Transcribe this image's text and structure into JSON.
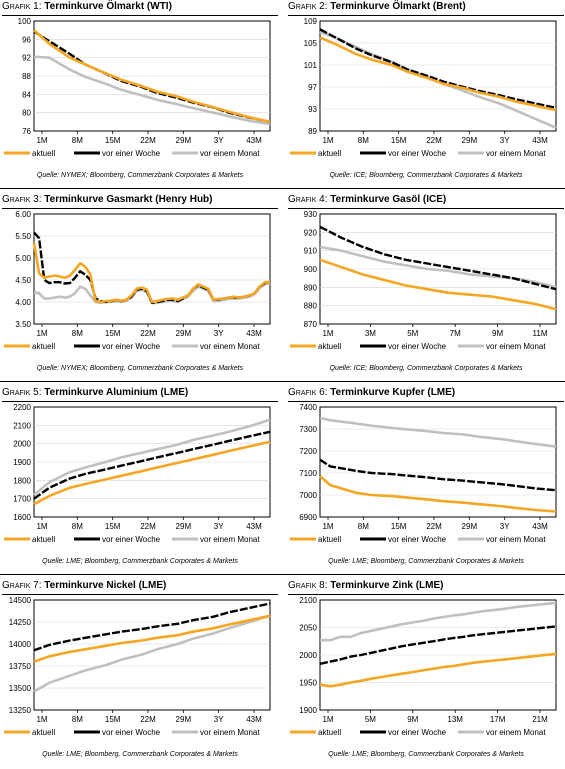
{
  "legend_labels": [
    "aktuell",
    "vor einer Woche",
    "vor einem Monat"
  ],
  "colors": {
    "aktuell": "#f5a623",
    "woche": "#000000",
    "monat": "#c0c0c0"
  },
  "charts": [
    {
      "num": "Grafik 1: ",
      "name": "Terminkurve Ölmarkt (WTI)",
      "source": "Quelle: NYMEX; Bloomberg, Commerzbank Corporates & Markets",
      "y_ticks": [
        "76",
        "80",
        "84",
        "88",
        "92",
        "96",
        "100"
      ],
      "x_ticks": [
        "1M",
        "8M",
        "15M",
        "22M",
        "29M",
        "3Y",
        "43M"
      ]
    },
    {
      "num": "Grafik 2: ",
      "name": "Terminkurve Ölmarkt (Brent)",
      "source": "Quelle: ICE; Bloomberg, Commerzbank Corporates & Markets",
      "y_ticks": [
        "89",
        "93",
        "97",
        "101",
        "105",
        "109"
      ],
      "x_ticks": [
        "1M",
        "8M",
        "15M",
        "22M",
        "29M",
        "3Y",
        "43M"
      ]
    },
    {
      "num": "Grafik 3: ",
      "name": "Terminkurve Gasmarkt (Henry Hub)",
      "source": "Quelle: NYMEX; Bloomberg, Commerzbank Corporates & Markets",
      "y_ticks": [
        "3.50",
        "4.00",
        "4.50",
        "5.00",
        "5.50",
        "6.00"
      ],
      "x_ticks": [
        "1M",
        "8M",
        "15M",
        "22M",
        "29M",
        "3Y",
        "43M"
      ]
    },
    {
      "num": "Grafik 4: ",
      "name": "Terminkurve Gasöl (ICE)",
      "source": "Quelle: ICE; Bloomberg, Commerzbank Corporates & Markets",
      "y_ticks": [
        "870",
        "880",
        "890",
        "900",
        "910",
        "920",
        "930"
      ],
      "x_ticks": [
        "1M",
        "3M",
        "5M",
        "7M",
        "9M",
        "11M"
      ]
    },
    {
      "num": "Grafik 5: ",
      "name": "Terminkurve Aluminium (LME)",
      "source": "Quelle: LME; Bloomberg, Commerzbank Corporates & Markets",
      "y_ticks": [
        "1600",
        "1700",
        "1800",
        "1900",
        "2000",
        "2100",
        "2200"
      ],
      "x_ticks": [
        "1M",
        "8M",
        "15M",
        "22M",
        "29M",
        "3Y",
        "43M"
      ]
    },
    {
      "num": "Grafik 6: ",
      "name": "Terminkurve Kupfer (LME)",
      "source": "Quelle: LME; Bloomberg, Commerzbank Corporates & Markets",
      "y_ticks": [
        "6900",
        "7000",
        "7100",
        "7200",
        "7300",
        "7400"
      ],
      "x_ticks": [
        "1M",
        "8M",
        "15M",
        "22M",
        "29M",
        "3Y",
        "43M"
      ]
    },
    {
      "num": "Grafik 7: ",
      "name": "Terminkurve Nickel (LME)",
      "source": "Quelle: LME; Bloomberg, Commerzbank Corporates & Markets",
      "y_ticks": [
        "13250",
        "13500",
        "13750",
        "14000",
        "14250",
        "14500"
      ],
      "x_ticks": [
        "1M",
        "8M",
        "15M",
        "22M",
        "29M",
        "3Y",
        "43M"
      ]
    },
    {
      "num": "Grafik 8: ",
      "name": "Terminkurve Zink (LME)",
      "source": "Quelle: LME; Bloomberg, Commerzbank Corporates & Markets",
      "y_ticks": [
        "1900",
        "1950",
        "2000",
        "2050",
        "2100"
      ],
      "x_ticks": [
        "1M",
        "5M",
        "9M",
        "13M",
        "17M",
        "21M"
      ]
    }
  ],
  "chart_data": [
    {
      "type": "line",
      "ylim": [
        76,
        100
      ],
      "x": [
        1,
        4,
        8,
        11,
        15,
        18,
        22,
        25,
        29,
        32,
        36,
        39,
        43,
        47
      ],
      "series": [
        {
          "name": "aktuell",
          "values": [
            98,
            95,
            92,
            90.5,
            88.6,
            87.2,
            85.8,
            84.6,
            83.5,
            82.4,
            81.2,
            80.2,
            79,
            78
          ]
        },
        {
          "name": "vor einer Woche",
          "values": [
            97.7,
            95.6,
            92.8,
            90.5,
            88.5,
            86.9,
            85.6,
            84.3,
            83.2,
            82.2,
            81.1,
            80,
            78.9,
            78
          ]
        },
        {
          "name": "vor einem Monat",
          "values": [
            92.2,
            92,
            89.4,
            87.8,
            86.3,
            85,
            83.8,
            82.8,
            81.8,
            81,
            80,
            79.2,
            78.2,
            77.5
          ]
        }
      ]
    },
    {
      "type": "line",
      "ylim": [
        89,
        109
      ],
      "x": [
        1,
        4,
        8,
        11,
        15,
        18,
        22,
        25,
        29,
        32,
        36,
        39,
        43,
        47
      ],
      "series": [
        {
          "name": "aktuell",
          "values": [
            106,
            104.8,
            103,
            102,
            101,
            99.8,
            98.6,
            97.6,
            96.8,
            96,
            95.2,
            94.4,
            93.6,
            92.8
          ]
        },
        {
          "name": "vor einer Woche",
          "values": [
            107.5,
            106,
            104,
            102.8,
            101.5,
            100.2,
            99,
            98,
            97,
            96.3,
            95.5,
            94.8,
            94,
            93.2
          ]
        },
        {
          "name": "vor einem Monat",
          "values": [
            107,
            106,
            104.3,
            103,
            101.6,
            100.2,
            98.8,
            97.6,
            96.3,
            95.2,
            94,
            92.8,
            91.2,
            89.6
          ]
        }
      ]
    },
    {
      "type": "line",
      "ylim": [
        3.5,
        6.0
      ],
      "x": [
        1,
        2,
        3,
        4,
        5,
        6,
        7,
        8,
        9,
        10,
        11,
        12,
        13,
        14,
        15,
        16,
        17,
        18,
        19,
        20,
        21,
        22,
        23,
        24,
        25,
        26,
        27,
        28,
        29,
        30,
        31,
        32,
        33,
        34,
        35,
        36,
        37,
        38,
        39,
        40,
        41,
        42,
        43,
        44,
        45,
        46,
        47
      ],
      "series": [
        {
          "name": "aktuell",
          "values": [
            5.35,
            4.65,
            4.55,
            4.58,
            4.6,
            4.58,
            4.55,
            4.6,
            4.73,
            4.88,
            4.8,
            4.62,
            4.02,
            4.0,
            4.02,
            4.03,
            4.05,
            4.03,
            4.05,
            4.15,
            4.3,
            4.33,
            4.28,
            4.0,
            4.02,
            4.05,
            4.07,
            4.08,
            4.05,
            4.1,
            4.15,
            4.3,
            4.4,
            4.35,
            4.3,
            4.05,
            4.07,
            4.08,
            4.1,
            4.12,
            4.1,
            4.12,
            4.15,
            4.2,
            4.35,
            4.45,
            4.45
          ]
        },
        {
          "name": "vor einer Woche",
          "values": [
            5.58,
            5.45,
            4.5,
            4.43,
            4.45,
            4.45,
            4.42,
            4.43,
            4.55,
            4.7,
            4.62,
            4.5,
            4.08,
            4.02,
            4.0,
            4.02,
            4.04,
            4.02,
            4.05,
            4.12,
            4.28,
            4.3,
            4.25,
            3.98,
            4.0,
            4.02,
            4.05,
            4.05,
            4.02,
            4.08,
            4.15,
            4.3,
            4.38,
            4.33,
            4.28,
            4.05,
            4.06,
            4.08,
            4.1,
            4.1,
            4.1,
            4.12,
            4.15,
            4.2,
            4.35,
            4.43,
            4.45
          ]
        },
        {
          "name": "vor einem Monat",
          "values": [
            4.22,
            4.2,
            4.08,
            4.08,
            4.1,
            4.12,
            4.1,
            4.12,
            4.2,
            4.35,
            4.3,
            4.15,
            4.0,
            3.98,
            4.0,
            4.0,
            4.02,
            4.0,
            4.02,
            4.1,
            4.25,
            4.28,
            4.22,
            3.98,
            3.98,
            4.0,
            4.02,
            4.02,
            4.0,
            4.06,
            4.12,
            4.25,
            4.35,
            4.3,
            4.25,
            4.02,
            4.03,
            4.05,
            4.07,
            4.08,
            4.08,
            4.1,
            4.12,
            4.18,
            4.32,
            4.4,
            4.42
          ]
        }
      ]
    },
    {
      "type": "line",
      "ylim": [
        870,
        930
      ],
      "x": [
        1,
        2,
        3,
        4,
        5,
        6,
        7,
        8,
        9,
        10,
        11,
        12
      ],
      "series": [
        {
          "name": "aktuell",
          "values": [
            905,
            901,
            897,
            894,
            891,
            889,
            887,
            886,
            885,
            883,
            881,
            878
          ]
        },
        {
          "name": "vor einer Woche",
          "values": [
            923,
            917,
            912,
            908,
            905,
            903,
            901,
            899,
            897,
            895,
            892,
            889
          ]
        },
        {
          "name": "vor einem Monat",
          "values": [
            912,
            910,
            907,
            904,
            902,
            900,
            899,
            897,
            896,
            895,
            893,
            890
          ]
        }
      ]
    },
    {
      "type": "line",
      "ylim": [
        1600,
        2200
      ],
      "x": [
        1,
        4,
        8,
        11,
        15,
        18,
        22,
        25,
        29,
        32,
        36,
        39,
        43,
        47
      ],
      "series": [
        {
          "name": "aktuell",
          "values": [
            1670,
            1715,
            1760,
            1780,
            1805,
            1825,
            1850,
            1870,
            1895,
            1915,
            1940,
            1960,
            1985,
            2010
          ]
        },
        {
          "name": "vor einer Woche",
          "values": [
            1700,
            1760,
            1810,
            1835,
            1860,
            1880,
            1905,
            1925,
            1950,
            1970,
            1995,
            2015,
            2040,
            2065
          ]
        },
        {
          "name": "vor einem Monat",
          "values": [
            1720,
            1790,
            1845,
            1870,
            1900,
            1925,
            1950,
            1970,
            1995,
            2020,
            2045,
            2065,
            2095,
            2130
          ]
        }
      ]
    },
    {
      "type": "line",
      "ylim": [
        6900,
        7400
      ],
      "x": [
        1,
        3,
        8,
        11,
        15,
        18,
        22,
        25,
        29,
        32,
        36,
        39,
        43,
        47
      ],
      "series": [
        {
          "name": "aktuell",
          "values": [
            7085,
            7045,
            7010,
            7000,
            6995,
            6988,
            6980,
            6972,
            6965,
            6958,
            6950,
            6942,
            6932,
            6925
          ]
        },
        {
          "name": "vor einer Woche",
          "values": [
            7160,
            7130,
            7110,
            7100,
            7095,
            7088,
            7080,
            7072,
            7065,
            7058,
            7050,
            7042,
            7030,
            7022
          ]
        },
        {
          "name": "vor einem Monat",
          "values": [
            7350,
            7340,
            7325,
            7315,
            7305,
            7298,
            7290,
            7282,
            7275,
            7265,
            7255,
            7245,
            7232,
            7220
          ]
        }
      ]
    },
    {
      "type": "line",
      "ylim": [
        13250,
        14500
      ],
      "x": [
        1,
        4,
        8,
        11,
        15,
        18,
        22,
        25,
        29,
        32,
        36,
        39,
        43,
        47
      ],
      "series": [
        {
          "name": "aktuell",
          "values": [
            13800,
            13860,
            13910,
            13940,
            13980,
            14010,
            14040,
            14070,
            14100,
            14140,
            14180,
            14220,
            14270,
            14320
          ]
        },
        {
          "name": "vor einer Woche",
          "values": [
            13930,
            13990,
            14040,
            14070,
            14110,
            14140,
            14170,
            14200,
            14230,
            14270,
            14310,
            14360,
            14410,
            14460
          ]
        },
        {
          "name": "vor einem Monat",
          "values": [
            13460,
            13560,
            13640,
            13700,
            13760,
            13820,
            13880,
            13940,
            14000,
            14060,
            14120,
            14180,
            14250,
            14320
          ]
        }
      ]
    },
    {
      "type": "line",
      "ylim": [
        1900,
        2100
      ],
      "x": [
        1,
        2,
        3,
        4,
        5,
        6,
        7,
        8,
        9,
        10,
        11,
        12,
        13,
        14,
        15,
        16,
        17,
        18,
        19,
        20,
        21,
        22,
        23,
        24
      ],
      "series": [
        {
          "name": "aktuell",
          "values": [
            1946,
            1943,
            1946,
            1950,
            1953,
            1957,
            1960,
            1963,
            1966,
            1969,
            1972,
            1975,
            1978,
            1980,
            1983,
            1986,
            1988,
            1990,
            1992,
            1994,
            1996,
            1998,
            2000,
            2002
          ]
        },
        {
          "name": "vor einer Woche",
          "values": [
            1984,
            1988,
            1992,
            1997,
            2000,
            2004,
            2008,
            2012,
            2016,
            2019,
            2022,
            2025,
            2028,
            2031,
            2033,
            2036,
            2038,
            2040,
            2042,
            2044,
            2046,
            2048,
            2050,
            2052
          ]
        },
        {
          "name": "vor einem Monat",
          "values": [
            2027,
            2027,
            2033,
            2033,
            2040,
            2044,
            2048,
            2052,
            2056,
            2059,
            2062,
            2066,
            2069,
            2072,
            2074,
            2077,
            2080,
            2082,
            2084,
            2087,
            2089,
            2091,
            2093,
            2095
          ]
        }
      ]
    }
  ]
}
